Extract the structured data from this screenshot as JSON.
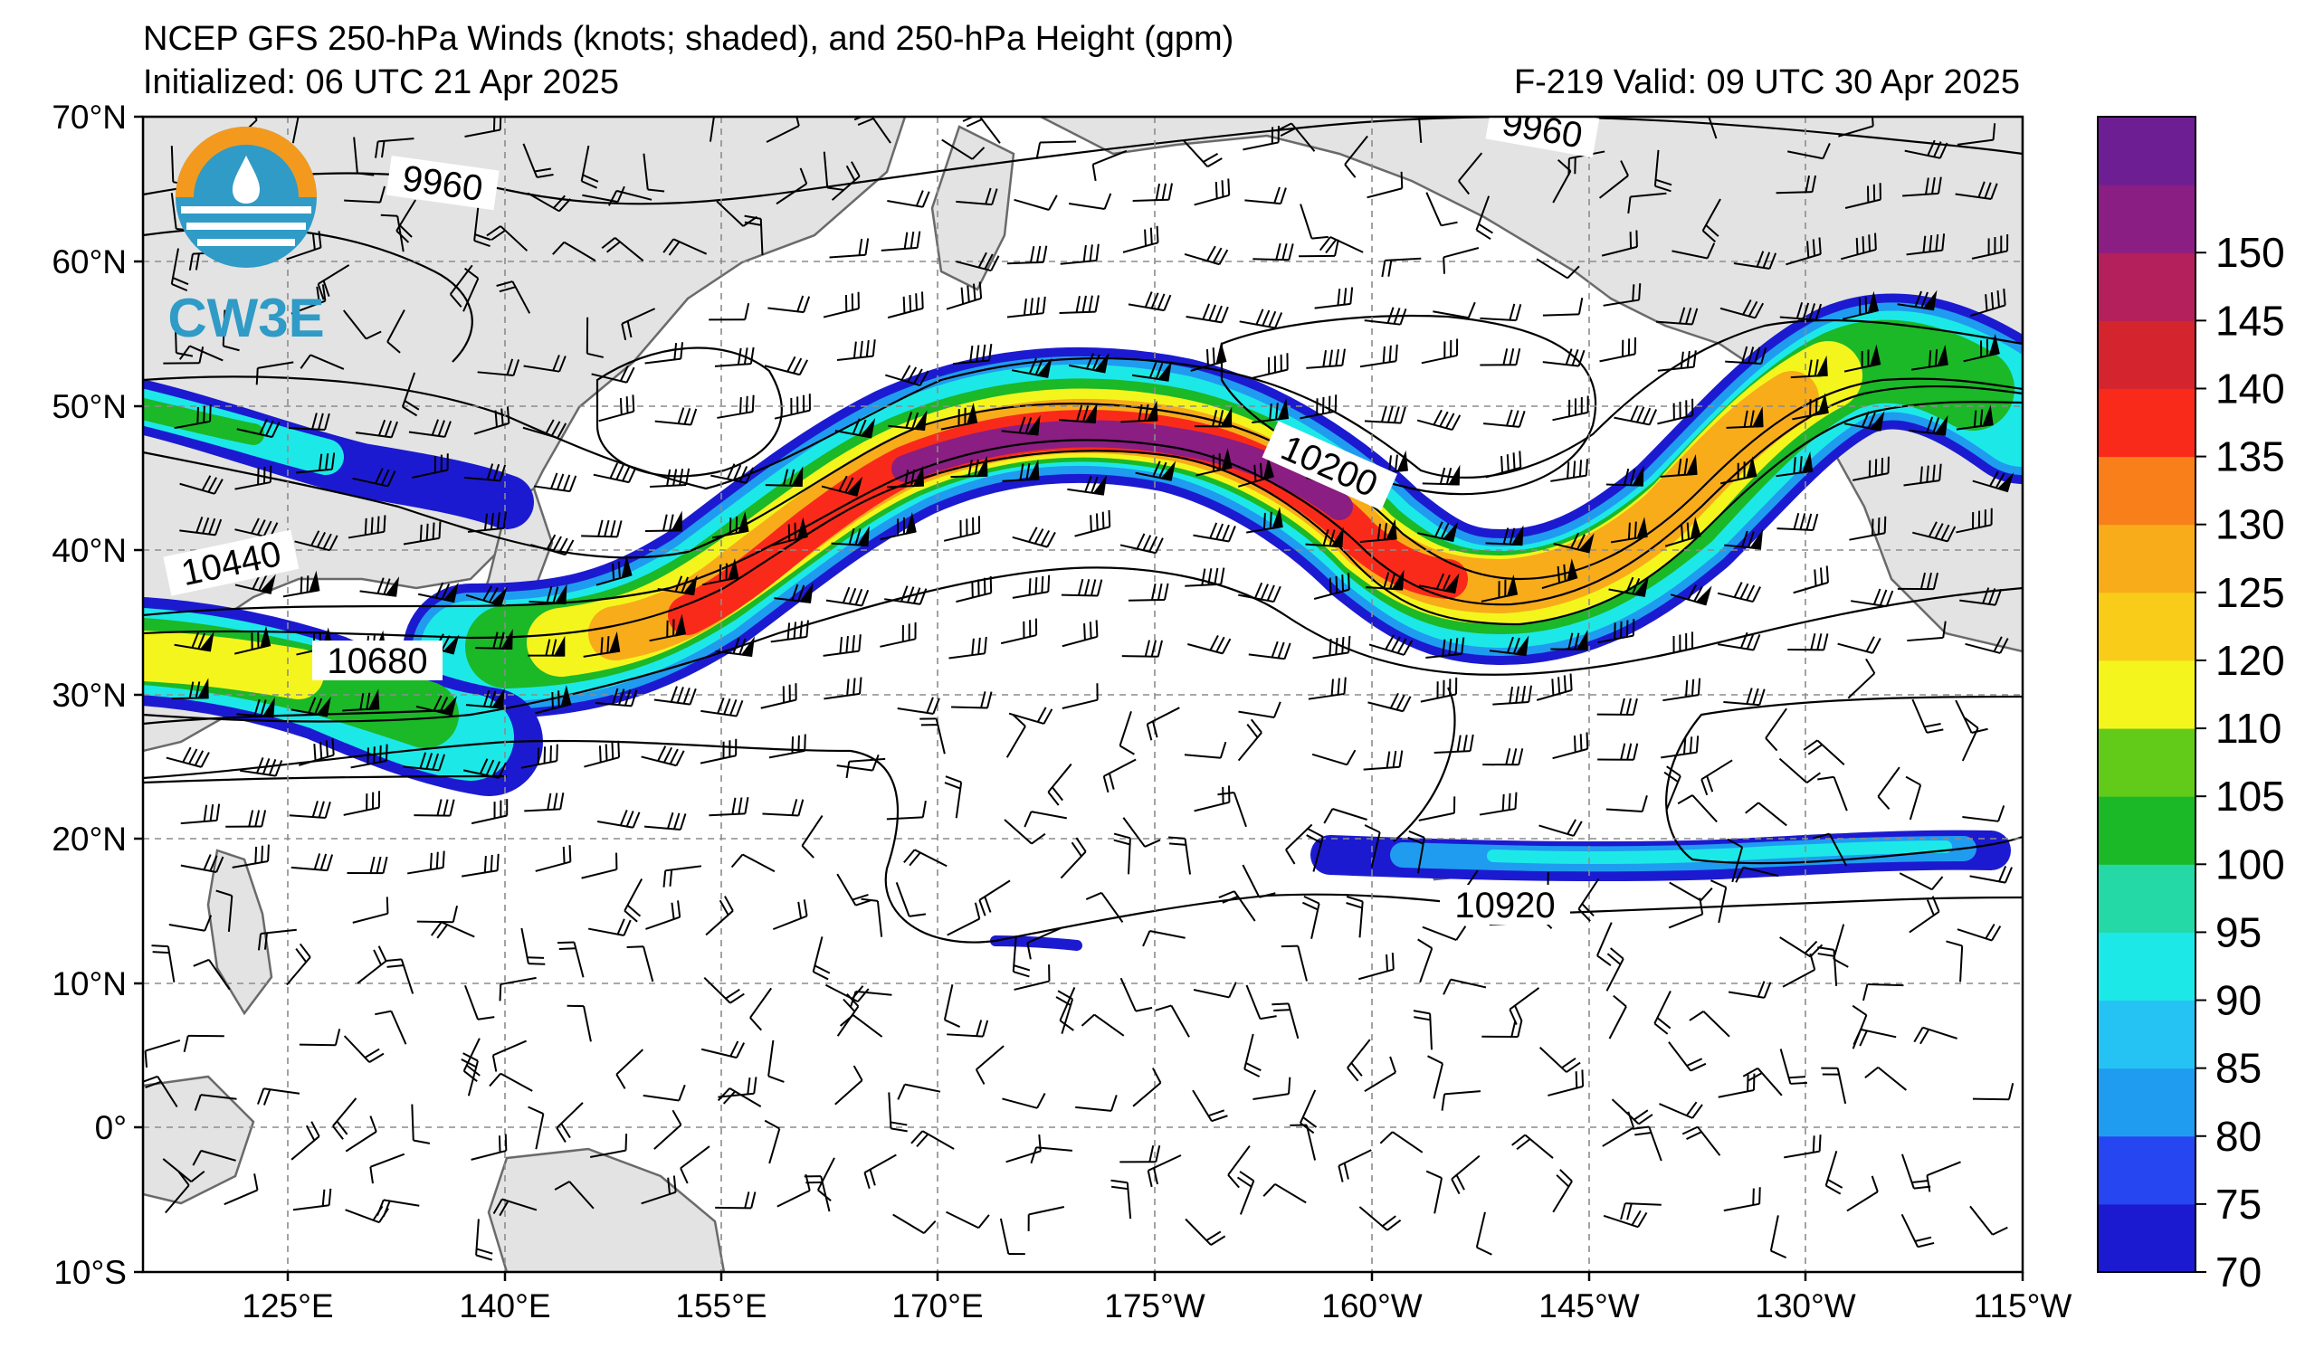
{
  "header": {
    "title": "NCEP GFS 250-hPa Winds (knots; shaded), and 250-hPa Height (gpm)",
    "initialized": "Initialized: 06 UTC 21 Apr 2025",
    "valid": "F-219  Valid: 09 UTC 30 Apr 2025"
  },
  "logo": {
    "text": "CW3E"
  },
  "map": {
    "lat_labels": [
      "70°N",
      "60°N",
      "50°N",
      "40°N",
      "30°N",
      "20°N",
      "10°N",
      "0°",
      "10°S"
    ],
    "lon_labels": [
      "125°E",
      "140°E",
      "155°E",
      "170°E",
      "175°W",
      "160°W",
      "145°W",
      "130°W",
      "115°W"
    ],
    "contour_labels": [
      "9960",
      "9960",
      "10200",
      "10440",
      "10680",
      "10920"
    ]
  },
  "colorbar": {
    "ticks": [
      "150",
      "145",
      "140",
      "135",
      "130",
      "125",
      "120",
      "110",
      "105",
      "100",
      "95",
      "90",
      "85",
      "80",
      "75",
      "70"
    ],
    "colors": [
      "#1c1ad0",
      "#2646f2",
      "#1f9cf0",
      "#25c3f4",
      "#1de8e8",
      "#24d9a6",
      "#1bb827",
      "#62cb1a",
      "#f5f51e",
      "#f9cc1a",
      "#f8ac1a",
      "#f97f1b",
      "#fa2a1a",
      "#d4242e",
      "#b3205c",
      "#8a1e82",
      "#6e1e93"
    ],
    "value_labels": [
      "70",
      "75",
      "80",
      "85",
      "90",
      "95",
      "100",
      "105",
      "110",
      "120",
      "125",
      "130",
      "135",
      "140",
      "145",
      "150"
    ]
  }
}
